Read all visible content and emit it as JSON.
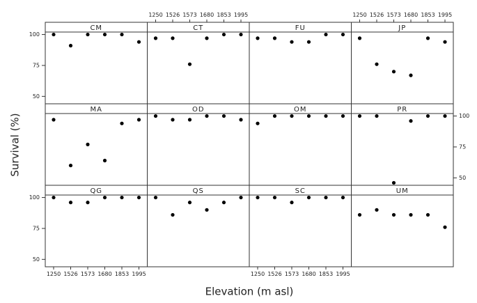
{
  "chart_data": {
    "type": "dotplot",
    "y_label": "Survival (%)",
    "x_label": "Elevation (m asl)",
    "categories": [
      "1250",
      "1526",
      "1573",
      "1680",
      "1853",
      "1995"
    ],
    "ylim": [
      44,
      102
    ],
    "yticks": [
      50,
      75,
      100
    ],
    "color": "#000000",
    "columns": 4,
    "panels": [
      {
        "name": "CM",
        "values": [
          100,
          91,
          100,
          100,
          100,
          94
        ]
      },
      {
        "name": "CT",
        "values": [
          97,
          97,
          76,
          97,
          100,
          100
        ]
      },
      {
        "name": "FU",
        "values": [
          97,
          97,
          94,
          94,
          100,
          100
        ]
      },
      {
        "name": "JP",
        "values": [
          97,
          76,
          70,
          67,
          97,
          94
        ]
      },
      {
        "name": "MA",
        "values": [
          97,
          60,
          77,
          64,
          94,
          97
        ]
      },
      {
        "name": "OD",
        "values": [
          100,
          97,
          97,
          100,
          100,
          97
        ]
      },
      {
        "name": "OM",
        "values": [
          94,
          100,
          100,
          100,
          100,
          100
        ]
      },
      {
        "name": "PR",
        "values": [
          100,
          100,
          46,
          96,
          100,
          100
        ]
      },
      {
        "name": "QG",
        "values": [
          100,
          96,
          96,
          100,
          100,
          100
        ]
      },
      {
        "name": "QS",
        "values": [
          100,
          86,
          96,
          90,
          96,
          100
        ]
      },
      {
        "name": "SC",
        "values": [
          100,
          100,
          96,
          100,
          100,
          100
        ]
      },
      {
        "name": "UM",
        "values": [
          86,
          90,
          86,
          86,
          86,
          76
        ]
      }
    ]
  }
}
